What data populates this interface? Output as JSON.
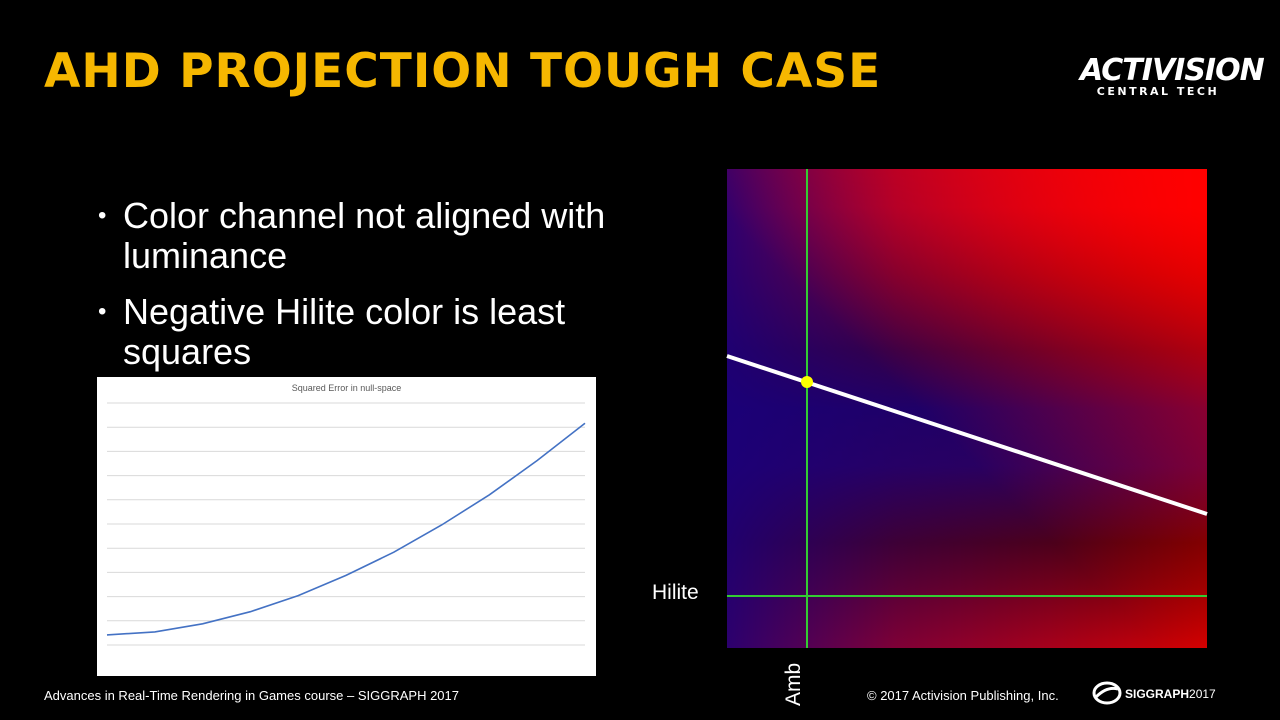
{
  "slide": {
    "title": "AHD PROJECTION TOUGH CASE",
    "title_color": "#f6b700",
    "bullets": [
      "Color channel not aligned with luminance",
      "Negative Hilite color is least squares"
    ]
  },
  "logo": {
    "main": "ACTIVISION",
    "sub": "CENTRAL TECH"
  },
  "error_chart": {
    "title": "Squared Error in null-space"
  },
  "heatmap": {
    "x_label": "Amb",
    "y_label": "Hilite",
    "colors": {
      "hot": "#ff0000",
      "dark": "#5a0000",
      "cool": "#1a007a",
      "line": "#ffffff",
      "axis": "#33cc33",
      "point": "#ffff00"
    }
  },
  "chart_data": [
    {
      "type": "line",
      "title": "Squared Error in null-space",
      "xlabel": "",
      "ylabel": "",
      "x": [
        0,
        1,
        2,
        3,
        4,
        5,
        6,
        7,
        8,
        9,
        10
      ],
      "series": [
        {
          "values": [
            1.0,
            1.3,
            2.1,
            3.3,
            4.9,
            6.9,
            9.2,
            11.9,
            14.9,
            18.3,
            22.0
          ]
        }
      ],
      "ylim": [
        0,
        24
      ],
      "grid": true,
      "color": "#4472c4"
    }
  ],
  "footer": {
    "course": "Advances in Real-Time Rendering in Games course – SIGGRAPH 2017",
    "copyright": "© 2017 Activision Publishing, Inc.",
    "siggraph": "SIGGRAPH",
    "siggraph_year": "2017"
  }
}
